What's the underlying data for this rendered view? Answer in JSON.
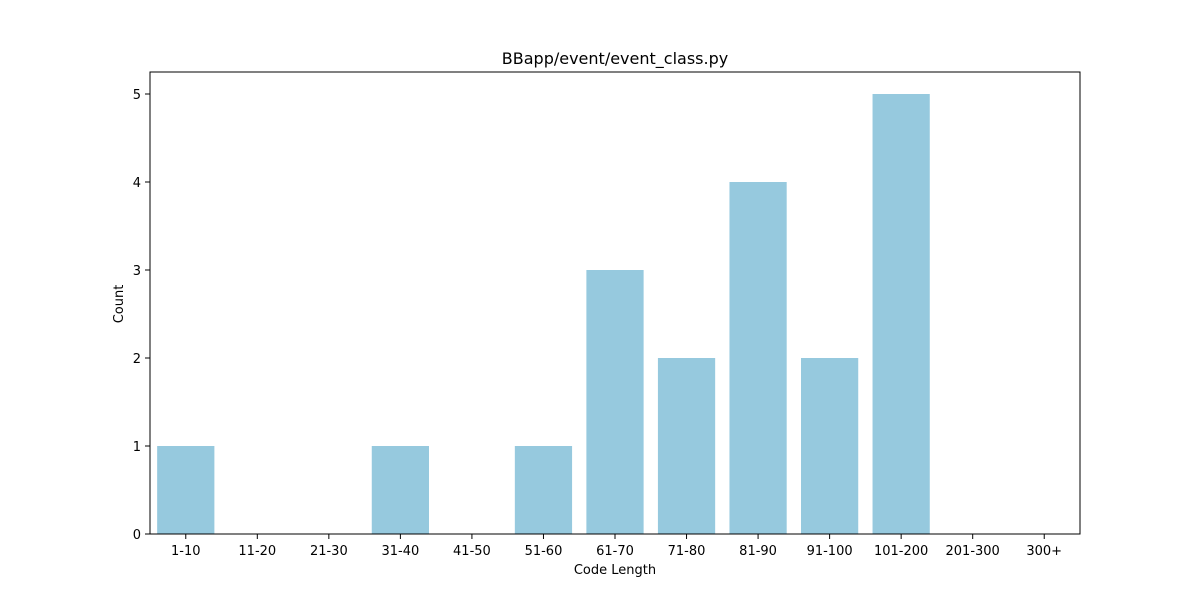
{
  "chart_data": {
    "type": "bar",
    "title": "BBapp/event/event_class.py",
    "xlabel": "Code Length",
    "ylabel": "Count",
    "categories": [
      "1-10",
      "11-20",
      "21-30",
      "31-40",
      "41-50",
      "51-60",
      "61-70",
      "71-80",
      "81-90",
      "91-100",
      "101-200",
      "201-300",
      "300+"
    ],
    "values": [
      1,
      0,
      0,
      1,
      0,
      1,
      3,
      2,
      4,
      2,
      5,
      0,
      0
    ],
    "ylim": [
      0,
      5.25
    ],
    "yticks": [
      0,
      1,
      2,
      3,
      4,
      5
    ],
    "grid": false,
    "legend": "none",
    "bar_color": "#96c9de"
  }
}
